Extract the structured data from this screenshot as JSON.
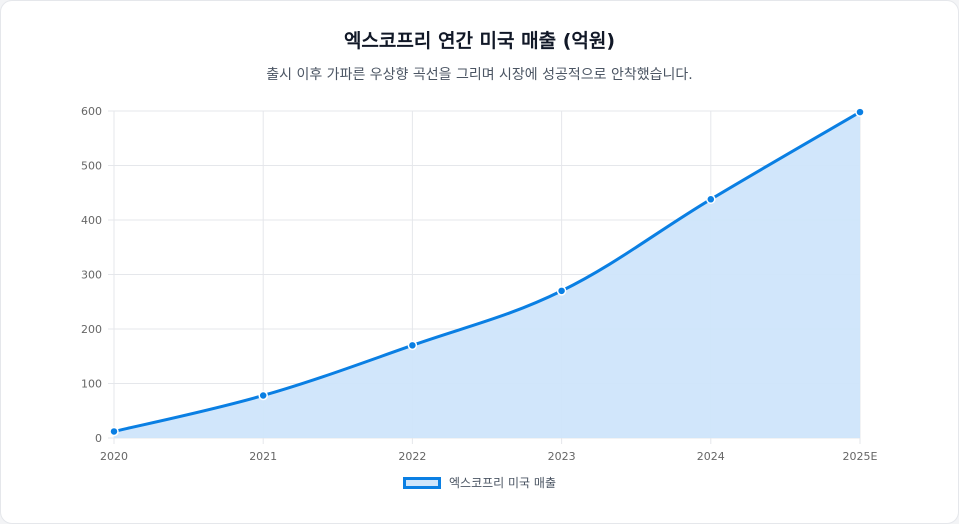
{
  "chart_data": {
    "type": "area",
    "title": "엑스코프리 연간 미국 매출 (억원)",
    "subtitle": "출시 이후 가파른 우상향 곡선을 그리며 시장에 성공적으로 안착했습니다.",
    "categories": [
      "2020",
      "2021",
      "2022",
      "2023",
      "2024",
      "2025E"
    ],
    "series": [
      {
        "name": "엑스코프리 미국 매출",
        "values": [
          12,
          78,
          170,
          270,
          438,
          598
        ]
      }
    ],
    "ylim": [
      0,
      600
    ],
    "yticks": [
      0,
      100,
      200,
      300,
      400,
      500,
      600
    ],
    "grid": true,
    "legend_position": "bottom",
    "colors": {
      "line": "#0a7fe3",
      "fill": "#cfe5fb",
      "grid": "#e5e7eb"
    }
  }
}
